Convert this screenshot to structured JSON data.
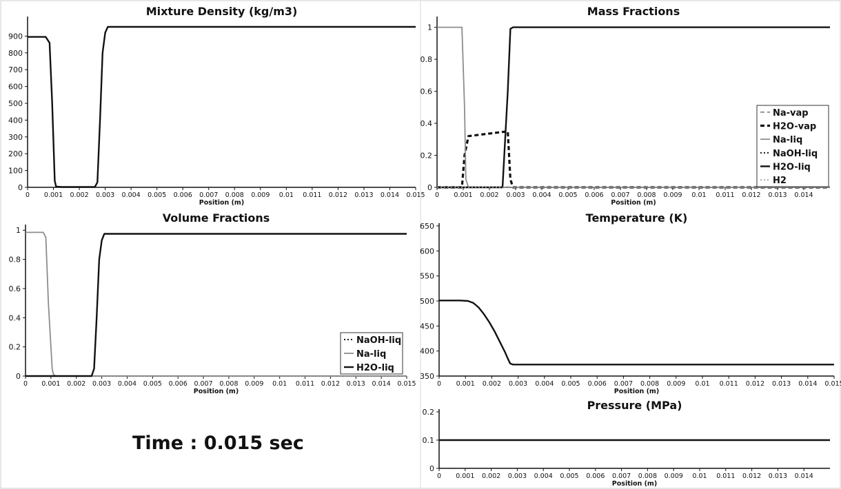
{
  "time_label": "Time : 0.015 sec",
  "chart_data": [
    {
      "id": "density",
      "type": "line",
      "title": "Mixture Density (kg/m3)",
      "xlabel": "Position (m)",
      "xlim": [
        0,
        0.015
      ],
      "ylim": [
        0,
        1000
      ],
      "xticks": [
        "0",
        "0.001",
        "0.002",
        "0.003",
        "0.004",
        "0.005",
        "0.006",
        "0.007",
        "0.008",
        "0.009",
        "0.01",
        "0.011",
        "0.012",
        "0.013",
        "0.014",
        "0.015"
      ],
      "yticks": [
        "0",
        "100",
        "200",
        "300",
        "400",
        "500",
        "600",
        "700",
        "800",
        "900"
      ],
      "legend": [],
      "series": [
        {
          "style": "black",
          "x": [
            0,
            0.0007,
            0.00085,
            0.00095,
            0.00105,
            0.0011,
            0.0013,
            0.0026,
            0.0027,
            0.0028,
            0.0029,
            0.003,
            0.0031,
            0.015
          ],
          "y": [
            895,
            895,
            860,
            500,
            40,
            5,
            2,
            2,
            30,
            400,
            800,
            920,
            955,
            955
          ]
        }
      ]
    },
    {
      "id": "mass",
      "type": "line",
      "title": "Mass Fractions",
      "xlabel": "Position (m)",
      "xlim": [
        0,
        0.015
      ],
      "ylim": [
        0,
        1.05
      ],
      "xticks": [
        "0",
        "0.001",
        "0.002",
        "0.003",
        "0.004",
        "0.005",
        "0.006",
        "0.007",
        "0.008",
        "0.009",
        "0.01",
        "0.011",
        "0.012",
        "0.013",
        "0.014"
      ],
      "yticks": [
        "0",
        "0.2",
        "0.4",
        "0.6",
        "0.8",
        "1"
      ],
      "legend": [
        "Na-vap",
        "H2O-vap",
        "Na-liq",
        "NaOH-liq",
        "H2O-liq",
        "H2"
      ],
      "series": [
        {
          "name": "Na-vap",
          "style": "dash-gray",
          "x": [
            0,
            0.015
          ],
          "y": [
            0.002,
            0.002
          ]
        },
        {
          "name": "H2O-vap",
          "style": "dash-black",
          "x": [
            0,
            0.00095,
            0.00105,
            0.0012,
            0.0027,
            0.0028,
            0.0029,
            0.015
          ],
          "y": [
            0,
            0,
            0.2,
            0.32,
            0.35,
            0.05,
            0,
            0
          ]
        },
        {
          "name": "Na-liq",
          "style": "gray",
          "x": [
            0,
            0.00095,
            0.00105,
            0.0011,
            0.0012,
            0.015
          ],
          "y": [
            1,
            1,
            0.5,
            0.05,
            0,
            0
          ]
        },
        {
          "name": "NaOH-liq",
          "style": "dot-black",
          "x": [
            0,
            0.015
          ],
          "y": [
            0,
            0
          ]
        },
        {
          "name": "H2O-liq",
          "style": "black",
          "x": [
            0,
            0.0025,
            0.0027,
            0.0028,
            0.0029,
            0.015
          ],
          "y": [
            0,
            0,
            0.6,
            0.99,
            1,
            1
          ]
        },
        {
          "name": "H2",
          "style": "dot-gray",
          "x": [
            0,
            0.015
          ],
          "y": [
            0.001,
            0.001
          ]
        }
      ]
    },
    {
      "id": "volume",
      "type": "line",
      "title": "Volume Fractions",
      "xlabel": "Position (m)",
      "xlim": [
        0,
        0.015
      ],
      "ylim": [
        0,
        1.02
      ],
      "xticks": [
        "0",
        "0.001",
        "0.002",
        "0.003",
        "0.004",
        "0.005",
        "0.006",
        "0.007",
        "0.008",
        "0.009",
        "0.01",
        "0.011",
        "0.012",
        "0.013",
        "0.014",
        "0.015"
      ],
      "yticks": [
        "0",
        "0.2",
        "0.4",
        "0.6",
        "0.8",
        "1"
      ],
      "legend": [
        "NaOH-liq",
        "Na-liq",
        "H2O-liq"
      ],
      "series": [
        {
          "name": "NaOH-liq",
          "style": "dot-black",
          "x": [
            0,
            0.015
          ],
          "y": [
            0,
            0
          ]
        },
        {
          "name": "Na-liq",
          "style": "gray",
          "x": [
            0,
            0.0007,
            0.0008,
            0.0009,
            0.00105,
            0.0011,
            0.0012,
            0.015
          ],
          "y": [
            0.985,
            0.985,
            0.95,
            0.5,
            0.05,
            0.01,
            0,
            0
          ]
        },
        {
          "name": "H2O-liq",
          "style": "black",
          "x": [
            0,
            0.0026,
            0.0027,
            0.0028,
            0.0029,
            0.003,
            0.0031,
            0.015
          ],
          "y": [
            0,
            0,
            0.05,
            0.4,
            0.8,
            0.93,
            0.975,
            0.975
          ]
        }
      ]
    },
    {
      "id": "temperature",
      "type": "line",
      "title": "Temperature (K)",
      "xlabel": "Position (m)",
      "xlim": [
        0,
        0.015
      ],
      "ylim": [
        350,
        650
      ],
      "xticks": [
        "0",
        "0.001",
        "0.002",
        "0.003",
        "0.004",
        "0.005",
        "0.006",
        "0.007",
        "0.008",
        "0.009",
        "0.01",
        "0.011",
        "0.012",
        "0.013",
        "0.014",
        "0.015"
      ],
      "yticks": [
        "350",
        "400",
        "450",
        "500",
        "550",
        "600",
        "650"
      ],
      "legend": [],
      "series": [
        {
          "style": "black",
          "x": [
            0,
            0.0008,
            0.0011,
            0.0013,
            0.0015,
            0.0017,
            0.0019,
            0.0021,
            0.0023,
            0.0025,
            0.0026,
            0.0027,
            0.0028,
            0.015
          ],
          "y": [
            501,
            501,
            500,
            496,
            487,
            474,
            458,
            440,
            419,
            398,
            386,
            375,
            373,
            373
          ]
        }
      ]
    },
    {
      "id": "pressure",
      "type": "line",
      "title": "Pressure (MPa)",
      "xlabel": "Position (m)",
      "xlim": [
        0,
        0.015
      ],
      "ylim": [
        0,
        0.2
      ],
      "xticks": [
        "0",
        "0.001",
        "0.002",
        "0.003",
        "0.004",
        "0.005",
        "0.006",
        "0.007",
        "0.008",
        "0.009",
        "0.01",
        "0.011",
        "0.012",
        "0.013",
        "0.014"
      ],
      "yticks": [
        "0",
        "0.1",
        "0.2"
      ],
      "legend": [],
      "series": [
        {
          "style": "black",
          "x": [
            0,
            0.015
          ],
          "y": [
            0.1,
            0.1
          ]
        }
      ]
    }
  ]
}
